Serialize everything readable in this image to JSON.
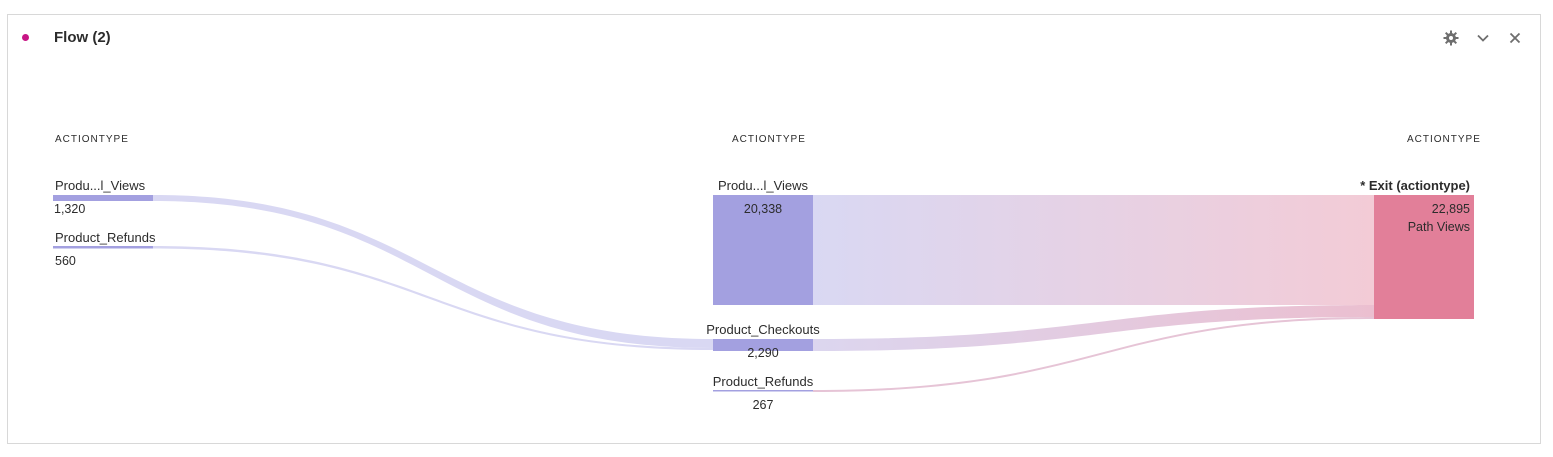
{
  "panel": {
    "title": "Flow (2)",
    "accent_color": "#c71585",
    "icons": [
      "gear-icon",
      "chevron-down-icon",
      "close-icon"
    ]
  },
  "columns": {
    "left": {
      "header": "ACTIONTYPE",
      "nodes": [
        {
          "label": "Produ...l_Views",
          "value": "1,320"
        },
        {
          "label": "Product_Refunds",
          "value": "560"
        }
      ]
    },
    "middle": {
      "header": "ACTIONTYPE",
      "nodes": [
        {
          "label": "Produ...l_Views",
          "value": "20,338"
        },
        {
          "label": "Product_Checkouts",
          "value": "2,290"
        },
        {
          "label": "Product_Refunds",
          "value": "267"
        }
      ]
    },
    "right": {
      "header": "ACTIONTYPE",
      "nodes": [
        {
          "label": "* Exit (actiontype)",
          "value": "22,895",
          "sub": "Path Views"
        }
      ]
    }
  },
  "colors": {
    "node_purple": "#a3a0e0",
    "flow_purple": "#d9d8f3",
    "node_pink": "#e27f99",
    "flow_pink": "#f3cbd6"
  }
}
